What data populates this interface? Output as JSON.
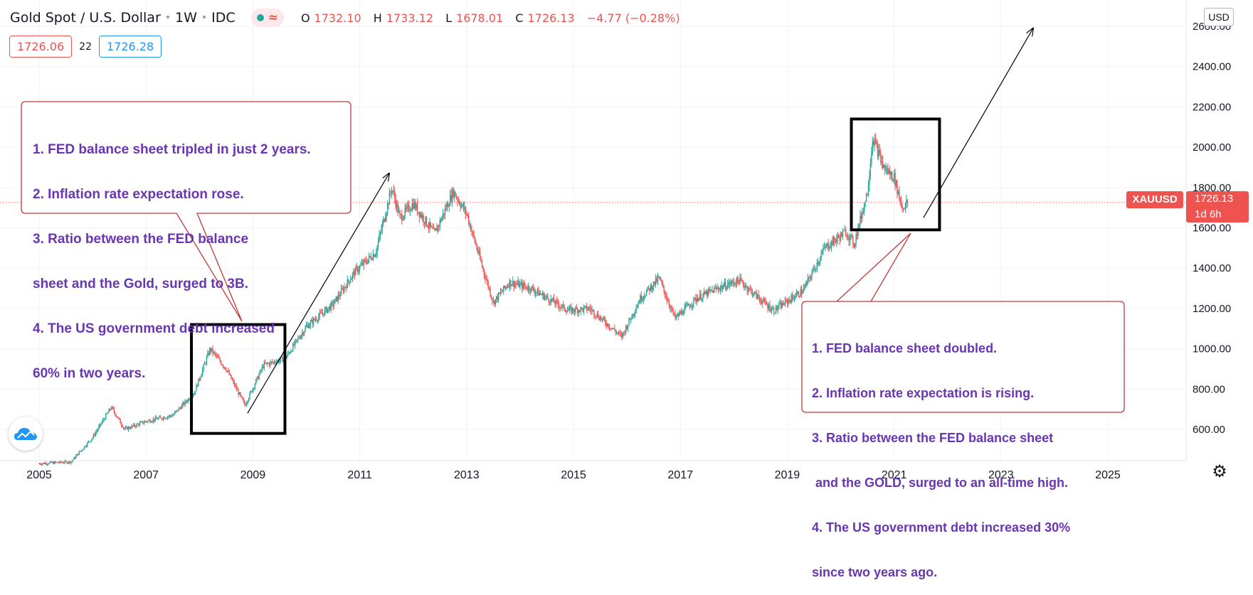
{
  "header": {
    "symbol_title": "Gold Spot / U.S. Dollar",
    "interval": "1W",
    "exchange": "IDC",
    "ohlc": {
      "o_label": "O",
      "o_value": "1732.10",
      "h_label": "H",
      "h_value": "1733.12",
      "l_label": "L",
      "l_value": "1678.01",
      "c_label": "C",
      "c_value": "1726.13",
      "change": "−4.77 (−0.28%)"
    }
  },
  "trade": {
    "sell_price": "1726.06",
    "spread": "22",
    "buy_price": "1726.28"
  },
  "currency_button": "USD",
  "price_tag": {
    "symbol": "XAUUSD",
    "price": "1726.13",
    "countdown": "1d 6h"
  },
  "callouts": {
    "left": [
      "1. FED balance sheet tripled in just 2 years.",
      "2. Inflation rate expectation rose.",
      "3. Ratio between the FED balance",
      "sheet and the Gold, surged to 3B.",
      "4. The US government debt increased",
      "60% in two years."
    ],
    "right": [
      "1. FED balance sheet doubled.",
      "2. Inflation rate expectation is rising.",
      "3. Ratio between the FED balance sheet",
      " and the GOLD, surged to an all-time high.",
      "4. The US government debt increased 30%",
      "since two years ago."
    ]
  },
  "colors": {
    "up": "#26a69a",
    "down": "#ef5350",
    "annotation_text": "#6a35b0",
    "annotation_border": "#c0393b",
    "grid": "#f0f3fa"
  },
  "icons": {
    "logo": "cloud-logo-icon",
    "settings": "gear-icon"
  },
  "chart_data": {
    "type": "candlestick",
    "symbol": "XAUUSD",
    "interval": "1W",
    "xlim": [
      2004.75,
      2027.0
    ],
    "ylim": [
      450,
      2650
    ],
    "x_ticks": [
      "2005",
      "2007",
      "2009",
      "2011",
      "2013",
      "2015",
      "2017",
      "2019",
      "2021",
      "2023",
      "2025"
    ],
    "y_ticks": [
      "600.00",
      "800.00",
      "1000.00",
      "1200.00",
      "1400.00",
      "1600.00",
      "1800.00",
      "2000.00",
      "2200.00",
      "2400.00",
      "2600.00"
    ],
    "last_price": 1726.13,
    "price_path": [
      [
        2005.0,
        430
      ],
      [
        2005.6,
        440
      ],
      [
        2006.0,
        560
      ],
      [
        2006.35,
        710
      ],
      [
        2006.6,
        600
      ],
      [
        2007.0,
        640
      ],
      [
        2007.5,
        670
      ],
      [
        2007.9,
        780
      ],
      [
        2008.2,
        1000
      ],
      [
        2008.5,
        900
      ],
      [
        2008.85,
        720
      ],
      [
        2009.2,
        920
      ],
      [
        2009.6,
        950
      ],
      [
        2010.0,
        1110
      ],
      [
        2010.5,
        1220
      ],
      [
        2010.9,
        1380
      ],
      [
        2011.3,
        1480
      ],
      [
        2011.6,
        1800
      ],
      [
        2011.75,
        1650
      ],
      [
        2012.0,
        1720
      ],
      [
        2012.4,
        1570
      ],
      [
        2012.75,
        1780
      ],
      [
        2013.0,
        1670
      ],
      [
        2013.3,
        1400
      ],
      [
        2013.5,
        1230
      ],
      [
        2013.8,
        1330
      ],
      [
        2014.2,
        1300
      ],
      [
        2014.9,
        1190
      ],
      [
        2015.3,
        1200
      ],
      [
        2015.9,
        1060
      ],
      [
        2016.25,
        1250
      ],
      [
        2016.6,
        1350
      ],
      [
        2016.9,
        1150
      ],
      [
        2017.3,
        1250
      ],
      [
        2017.7,
        1300
      ],
      [
        2018.1,
        1340
      ],
      [
        2018.6,
        1220
      ],
      [
        2018.75,
        1190
      ],
      [
        2019.3,
        1290
      ],
      [
        2019.7,
        1500
      ],
      [
        2020.1,
        1580
      ],
      [
        2020.25,
        1520
      ],
      [
        2020.5,
        1780
      ],
      [
        2020.6,
        2050
      ],
      [
        2020.8,
        1900
      ],
      [
        2021.0,
        1850
      ],
      [
        2021.15,
        1700
      ],
      [
        2021.25,
        1726
      ]
    ],
    "annotations": {
      "boxes": [
        {
          "x": [
            2007.85,
            2009.6
          ],
          "y": [
            580,
            1120
          ]
        },
        {
          "x": [
            2020.2,
            2021.85
          ],
          "y": [
            1590,
            2140
          ]
        }
      ],
      "arrows": [
        {
          "from": [
            2008.9,
            680
          ],
          "to": [
            2011.55,
            1870
          ]
        },
        {
          "from": [
            2021.55,
            1650
          ],
          "to": [
            2023.6,
            2590
          ]
        }
      ]
    }
  }
}
